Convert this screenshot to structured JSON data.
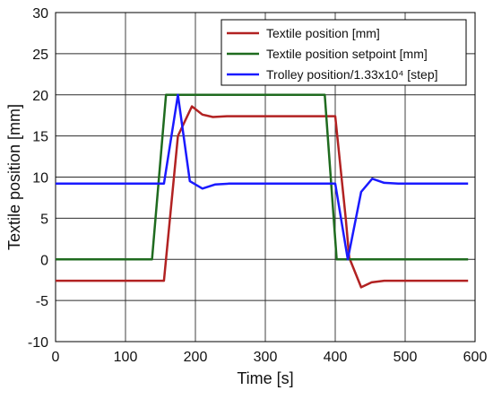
{
  "chart_data": {
    "type": "line",
    "xlabel": "Time [s]",
    "ylabel": "Textile position [mm]",
    "xlim": [
      0,
      600
    ],
    "ylim": [
      -10,
      30
    ],
    "xticks": [
      0,
      100,
      200,
      300,
      400,
      500,
      600
    ],
    "yticks": [
      -10,
      -5,
      0,
      5,
      10,
      15,
      20,
      25,
      30
    ],
    "xtick_labels": [
      "0",
      "100",
      "200",
      "300",
      "400",
      "500",
      "600"
    ],
    "ytick_labels": [
      "-10",
      "-5",
      "0",
      "5",
      "10",
      "15",
      "20",
      "25",
      "30"
    ],
    "grid": true,
    "legend_position": "top-right",
    "series": [
      {
        "name": "Textile position [mm]",
        "color": "#b22222",
        "x": [
          0,
          155,
          175,
          195,
          210,
          225,
          245,
          265,
          300,
          350,
          400,
          415,
          420,
          437,
          452,
          470,
          500,
          590
        ],
        "y": [
          -2.6,
          -2.6,
          15.0,
          18.6,
          17.6,
          17.3,
          17.4,
          17.4,
          17.4,
          17.4,
          17.4,
          5.0,
          0.2,
          -3.4,
          -2.8,
          -2.6,
          -2.6,
          -2.6
        ]
      },
      {
        "name": "Textile position setpoint [mm]",
        "color": "#1f6b1f",
        "x": [
          0,
          138,
          158,
          385,
          402,
          590
        ],
        "y": [
          0,
          0,
          20,
          20,
          0,
          0
        ]
      },
      {
        "name": "Trolley position/1.33x10⁴ [step]",
        "color": "#1a1aff",
        "x": [
          0,
          155,
          175,
          192,
          210,
          228,
          248,
          270,
          300,
          350,
          400,
          418,
          437,
          453,
          470,
          490,
          590
        ],
        "y": [
          9.2,
          9.2,
          20.0,
          9.5,
          8.6,
          9.1,
          9.2,
          9.2,
          9.2,
          9.2,
          9.2,
          0,
          8.2,
          9.8,
          9.3,
          9.2,
          9.2
        ]
      }
    ]
  }
}
